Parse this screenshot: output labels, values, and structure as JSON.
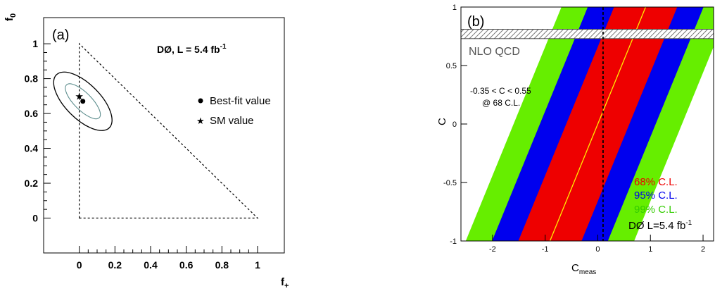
{
  "chart_data": [
    {
      "type": "scatter",
      "panel_label": "(a)",
      "annotation": "DØ, L = 5.4 fb",
      "annotation_sup": "-1",
      "xlabel": "f",
      "xlabel_sub": "+",
      "ylabel": "f",
      "ylabel_sub": "0",
      "xlim": [
        -0.2,
        1.15
      ],
      "ylim": [
        -0.2,
        1.15
      ],
      "xticks": [
        "0",
        "0.2",
        "0.4",
        "0.6",
        "0.8",
        "1"
      ],
      "xtick_values": [
        0,
        0.2,
        0.4,
        0.6,
        0.8,
        1
      ],
      "yticks": [
        "0",
        "0.2",
        "0.4",
        "0.6",
        "0.8",
        "1"
      ],
      "ytick_values": [
        0,
        0.2,
        0.4,
        0.6,
        0.8,
        1
      ],
      "best_fit": {
        "f_plus": 0.02,
        "f_0": 0.67
      },
      "sm_value": {
        "f_plus": 0.0,
        "f_0": 0.7
      },
      "physical_region": [
        [
          0,
          0
        ],
        [
          1,
          0
        ],
        [
          0,
          1
        ]
      ],
      "contours": [
        {
          "name": "inner",
          "center": [
            0.02,
            0.67
          ],
          "semi_axis_major": 0.13,
          "semi_axis_minor": 0.05,
          "angle_deg": -45
        },
        {
          "name": "outer",
          "center": [
            0.02,
            0.67
          ],
          "semi_axis_major": 0.21,
          "semi_axis_minor": 0.1,
          "angle_deg": -45
        }
      ],
      "legend": [
        {
          "marker": "dot",
          "label": "Best-fit value"
        },
        {
          "marker": "star",
          "label": "SM value"
        }
      ]
    },
    {
      "type": "area",
      "panel_label": "(b)",
      "xlabel": "C",
      "xlabel_sub": "meas",
      "ylabel": "C",
      "xlim": [
        -2.6,
        2.2
      ],
      "ylim": [
        -1,
        1
      ],
      "xticks": [
        "-2",
        "-1",
        "0",
        "1",
        "2"
      ],
      "xtick_values": [
        -2,
        -1,
        0,
        1,
        2
      ],
      "yticks": [
        "-1",
        "-0.5",
        "0",
        "0.5",
        "1"
      ],
      "ytick_values": [
        -1,
        -0.5,
        0,
        0.5,
        1
      ],
      "measured_value": 0.1,
      "nlo_qcd": {
        "label": "NLO QCD",
        "C_min": 0.73,
        "C_max": 0.81
      },
      "result_text_1": "-0.35 < C < 0.55",
      "result_text_2": "@ 68 C.L.",
      "bands": [
        {
          "name": "99% C.L.",
          "color": "#66ee00",
          "half_width": 1.6
        },
        {
          "name": "95% C.L.",
          "color": "#0000ee",
          "half_width": 1.1
        },
        {
          "name": "68% C.L.",
          "color": "#ee0000",
          "half_width": 0.6
        }
      ],
      "center_line": {
        "color": "#ffee00",
        "slope": 1.1,
        "intercept": 0
      },
      "legend": [
        {
          "label": "68% C.L.",
          "color": "#ee0000"
        },
        {
          "label": "95% C.L.",
          "color": "#0000ee"
        },
        {
          "label": "99% C.L.",
          "color": "#66ee00"
        }
      ],
      "annotation": "DØ L=5.4 fb",
      "annotation_sup": "-1"
    }
  ]
}
